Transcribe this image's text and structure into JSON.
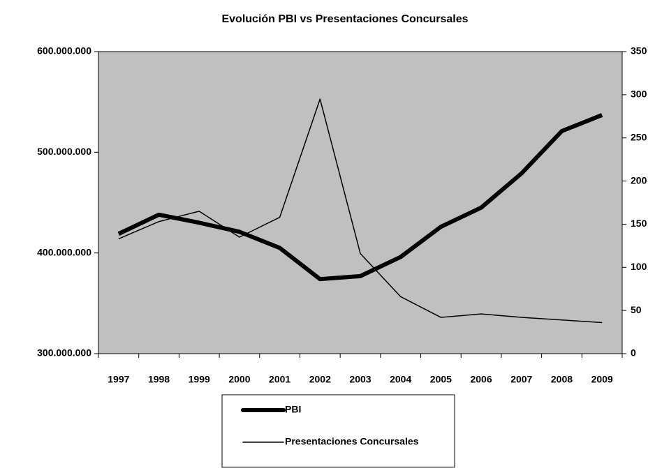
{
  "chart_data": {
    "type": "line",
    "title": "Evolución PBI vs Presentaciones Concursales",
    "categories": [
      "1997",
      "1998",
      "1999",
      "2000",
      "2001",
      "2002",
      "2003",
      "2004",
      "2005",
      "2006",
      "2007",
      "2008",
      "2009"
    ],
    "series": [
      {
        "name": "PBI",
        "color": "#000000",
        "axis": "y",
        "values": [
          419000000,
          438000000,
          430000000,
          421000000,
          405000000,
          374000000,
          377000000,
          396000000,
          426000000,
          445000000,
          479000000,
          521000000,
          537000000
        ]
      },
      {
        "name": "Presentaciones Concursales",
        "color": "#000000",
        "axis": "y2",
        "values": [
          133,
          153,
          165,
          135,
          158,
          295,
          116,
          66,
          42,
          46,
          42,
          39,
          36
        ]
      }
    ],
    "ylim": [
      300000000,
      600000000
    ],
    "yticks": [
      {
        "value": 300000000,
        "label": "300.000.000"
      },
      {
        "value": 400000000,
        "label": "400.000.000"
      },
      {
        "value": 500000000,
        "label": "500.000.000"
      },
      {
        "value": 600000000,
        "label": "600.000.000"
      }
    ],
    "y2lim": [
      0,
      350
    ],
    "y2ticks": [
      0,
      50,
      100,
      150,
      200,
      250,
      300,
      350
    ],
    "grid": false,
    "legend": "bottom",
    "plot_background": "#c0c0c0"
  }
}
